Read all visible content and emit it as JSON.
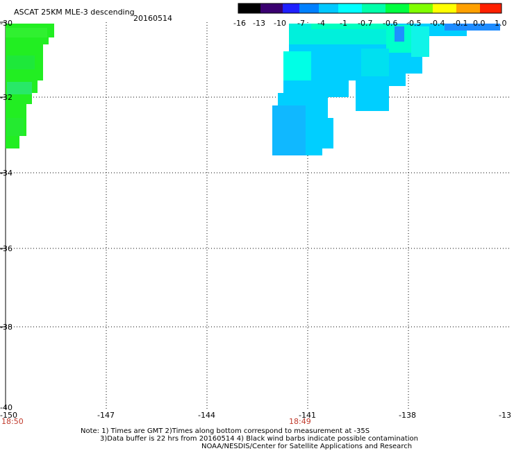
{
  "header": {
    "title": "ASCAT 25KM MLE-3 descending",
    "date": "20160514"
  },
  "colorbar": {
    "ticks": [
      "-16",
      "-13",
      "-10",
      "-7",
      "-4",
      "-1",
      "-0.7",
      "-0.6",
      "-0.5",
      "-0.4",
      "-0.1",
      "0.0",
      "1.0"
    ],
    "colors": [
      "#000000",
      "#2a0050",
      "#5a00a8",
      "#2020ff",
      "#0060ff",
      "#00aaff",
      "#00ffff",
      "#00ffaa",
      "#00ff40",
      "#80ff00",
      "#ffff00",
      "#ff8000",
      "#ff0000"
    ]
  },
  "axes": {
    "lat_labels": [
      "-30",
      "-32",
      "-34",
      "-36",
      "-38",
      "-40"
    ],
    "lon_labels": [
      "-150",
      "-147",
      "-144",
      "-141",
      "-138",
      "-13"
    ]
  },
  "times": {
    "left": "18:50",
    "mid": "18:49"
  },
  "notes": {
    "line1": "Note: 1) Times are GMT 2)Times along bottom correspond to measurement at -35S",
    "line2": "3)Data buffer is 22 hrs from 20160514 4) Black wind barbs indicate possible contamination",
    "line3": "NOAA/NESDIS/Center for Satellite Applications and Research"
  }
}
